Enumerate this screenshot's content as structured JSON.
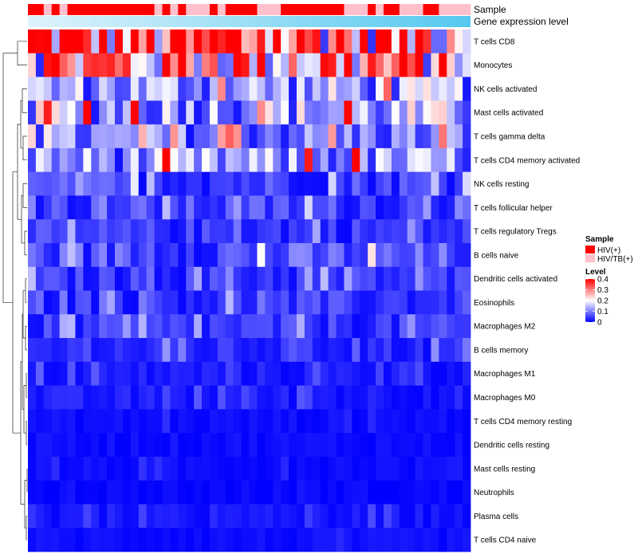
{
  "chart_data": {
    "type": "heatmap",
    "annotations": {
      "sample_label": "Sample",
      "gene_label": "Gene expression level",
      "sample_groups": [
        "HIV(+)",
        "HIV(+)",
        "HIV/TB(+)",
        "HIV(+)",
        "HIV/TB(+)",
        "HIV(+)",
        "HIV(+)",
        "HIV(+)",
        "HIV(+)",
        "HIV(+)",
        "HIV(+)",
        "HIV(+)",
        "HIV(+)",
        "HIV(+)",
        "HIV(+)",
        "HIV(+)",
        "HIV/TB(+)",
        "HIV(+)",
        "HIV/TB(+)",
        "HIV(+)",
        "HIV/TB(+)",
        "HIV/TB(+)",
        "HIV/TB(+)",
        "HIV(+)",
        "HIV/TB(+)",
        "HIV(+)",
        "HIV(+)",
        "HIV(+)",
        "HIV(+)",
        "HIV/TB(+)",
        "HIV/TB(+)",
        "HIV/TB(+)",
        "HIV(+)",
        "HIV(+)",
        "HIV(+)",
        "HIV(+)",
        "HIV(+)",
        "HIV(+)",
        "HIV(+)",
        "HIV(+)",
        "HIV/TB(+)",
        "HIV/TB(+)",
        "HIV/TB(+)",
        "HIV(+)",
        "HIV/TB(+)",
        "HIV(+)",
        "HIV(+)",
        "HIV/TB(+)",
        "HIV/TB(+)",
        "HIV/TB(+)",
        "HIV(+)",
        "HIV(+)",
        "HIV/TB(+)",
        "HIV/TB(+)",
        "HIV/TB(+)",
        "HIV/TB(+)"
      ]
    },
    "rows": [
      "T cells CD8",
      "Monocytes",
      "NK cells activated",
      "Mast cells activated",
      "T cells gamma delta",
      "T cells CD4 memory activated",
      "NK cells resting",
      "T cells follicular helper",
      "T cells regulatory  Tregs",
      "B cells naive",
      "Dendritic cells activated",
      "Eosinophils",
      "Macrophages M2",
      "B cells memory",
      "Macrophages M1",
      "Macrophages M0",
      "T cells CD4 memory resting",
      "Dendritic cells resting",
      "Mast cells resting",
      "Neutrophils",
      "Plasma cells",
      "T cells CD4 naive"
    ],
    "n_columns": 56,
    "row_mean_levels": [
      0.32,
      0.28,
      0.12,
      0.13,
      0.09,
      0.11,
      0.05,
      0.05,
      0.04,
      0.06,
      0.04,
      0.04,
      0.04,
      0.03,
      0.02,
      0.02,
      0.01,
      0.01,
      0.01,
      0.005,
      0.015,
      0.01
    ],
    "color_scale": {
      "min": 0,
      "mid": 0.2,
      "max": 0.4,
      "low_color": "#0000ff",
      "mid_color": "#ffffff",
      "high_color": "#ff0000"
    },
    "legend": {
      "sample_title": "Sample",
      "sample_entries": [
        {
          "label": "HIV(+)",
          "color": "#ff0000"
        },
        {
          "label": "HIV/TB(+)",
          "color": "#ffc0cb"
        }
      ],
      "level_title": "Level",
      "level_ticks": [
        {
          "value": 0.4,
          "label": "0.4"
        },
        {
          "value": 0.3,
          "label": "0.3"
        },
        {
          "value": 0.2,
          "label": "0.2"
        },
        {
          "value": 0.1,
          "label": "0.1"
        },
        {
          "value": 0,
          "label": "0"
        }
      ]
    }
  }
}
